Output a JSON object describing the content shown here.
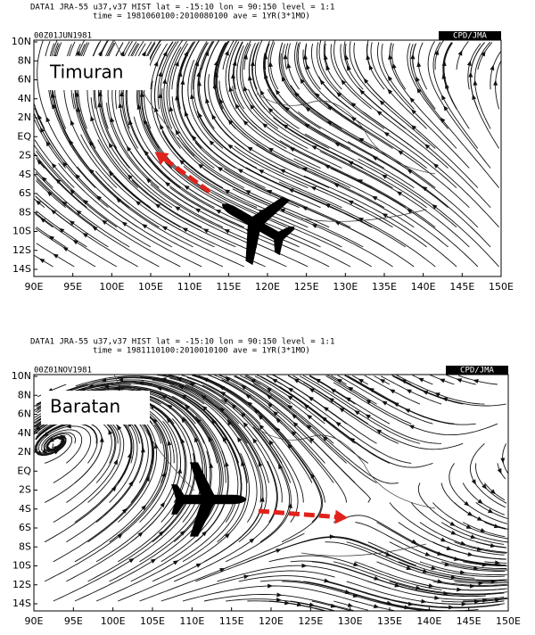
{
  "panels": [
    {
      "header": {
        "line1": "DATA1   JRA-55   u37,v37   HIST   lat = -15:10   lon = 90:150   level = 1:1",
        "line2": "time = 1981060100:2010080100   ave = 1YR(3*1MO)"
      },
      "date": "00Z01JUN1981",
      "source": "CPD/JMA",
      "label": "Timuran",
      "yticks": [
        "10N",
        "8N",
        "6N",
        "4N",
        "2N",
        "EQ",
        "2S",
        "4S",
        "6S",
        "8S",
        "10S",
        "12S",
        "14S"
      ],
      "xticks": [
        "90E",
        "95E",
        "100E",
        "105E",
        "110E",
        "115E",
        "120E",
        "125E",
        "130E",
        "135E",
        "140E",
        "145E",
        "150E"
      ]
    },
    {
      "header": {
        "line1": "DATA1   JRA-55   u37,v37   HIST   lat = -15:10   lon = 90:150   level = 1:1",
        "line2": "time = 1981110100:2010010100   ave = 1YR(3*1MO)"
      },
      "date": "00Z01NOV1981",
      "source": "CPD/JMA",
      "label": "Baratan",
      "yticks": [
        "10N",
        "8N",
        "6N",
        "4N",
        "2N",
        "EQ",
        "2S",
        "4S",
        "6S",
        "8S",
        "10S",
        "12S",
        "14S"
      ],
      "xticks": [
        "90E",
        "95E",
        "100E",
        "105E",
        "110E",
        "115E",
        "120E",
        "125E",
        "130E",
        "135E",
        "140E",
        "145E",
        "150E"
      ]
    }
  ]
}
